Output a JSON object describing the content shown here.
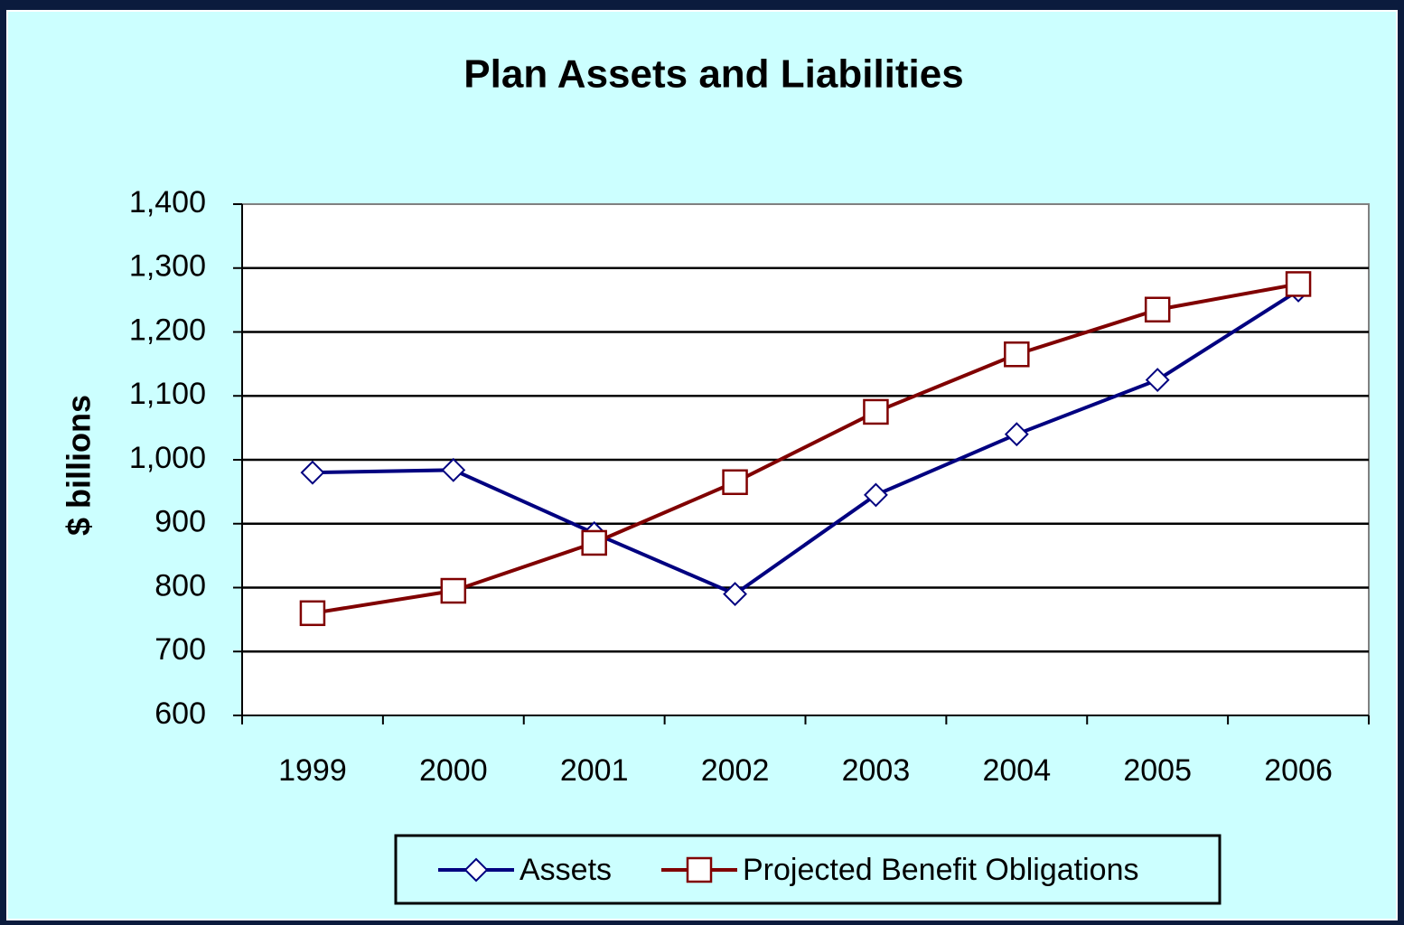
{
  "chart_data": {
    "type": "line",
    "title": "Plan Assets and Liabilities",
    "y_label": "$ billions",
    "categories": [
      "1999",
      "2000",
      "2001",
      "2002",
      "2003",
      "2004",
      "2005",
      "2006"
    ],
    "series": [
      {
        "name": "Assets",
        "color": "#000080",
        "marker": "diamond",
        "values": [
          980,
          984,
          885,
          790,
          945,
          1040,
          1125,
          1265
        ]
      },
      {
        "name": "Projected Benefit Obligations",
        "color": "#800000",
        "marker": "square",
        "values": [
          760,
          795,
          870,
          965,
          1075,
          1165,
          1235,
          1275
        ]
      }
    ],
    "ylim": [
      600,
      1400
    ],
    "yticks": [
      600,
      700,
      800,
      900,
      {
        "value": 1000,
        "label": "1,000"
      },
      {
        "value": 1100,
        "label": "1,100"
      },
      {
        "value": 1200,
        "label": "1,200"
      },
      {
        "value": 1300,
        "label": "1,300"
      },
      {
        "value": 1400,
        "label": "1,400"
      }
    ],
    "grid": true,
    "legend": "bottom"
  }
}
